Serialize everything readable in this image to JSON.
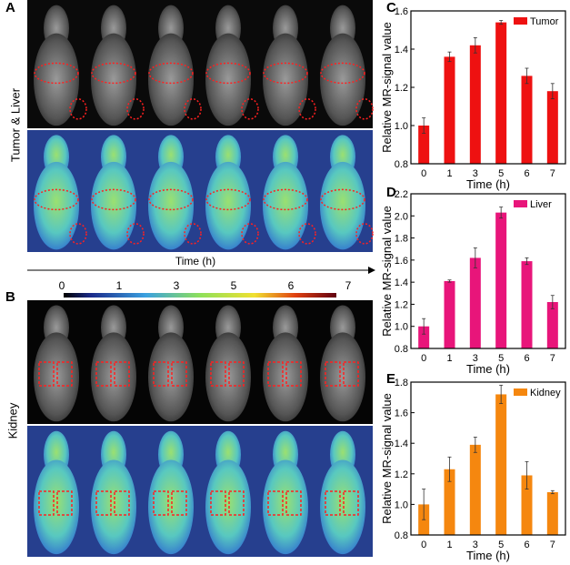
{
  "panels": {
    "A": "A",
    "B": "B",
    "C": "C",
    "D": "D",
    "E": "E"
  },
  "row_labels": {
    "tumor_liver": "Tumor & Liver",
    "kidney": "Kidney"
  },
  "time_axis": {
    "label": "Time (h)",
    "ticks": [
      "0",
      "1",
      "3",
      "5",
      "6",
      "7"
    ]
  },
  "chart_data": [
    {
      "type": "bar",
      "panel": "C",
      "categories": [
        "0",
        "1",
        "3",
        "5",
        "6",
        "7"
      ],
      "series": [
        {
          "name": "Tumor",
          "values": [
            1.0,
            1.36,
            1.42,
            1.54,
            1.26,
            1.18
          ],
          "errors": [
            0.04,
            0.025,
            0.04,
            0.01,
            0.04,
            0.04
          ]
        }
      ],
      "xlabel": "Time (h)",
      "ylabel": "Relative MR-signal value",
      "ylim": [
        0.8,
        1.6
      ],
      "yticks": [
        "0.8",
        "1.0",
        "1.2",
        "1.4",
        "1.6"
      ],
      "color": "#ee1111",
      "legend": "top-right"
    },
    {
      "type": "bar",
      "panel": "D",
      "categories": [
        "0",
        "1",
        "3",
        "5",
        "6",
        "7"
      ],
      "series": [
        {
          "name": "Liver",
          "values": [
            1.0,
            1.41,
            1.62,
            2.03,
            1.59,
            1.22
          ],
          "errors": [
            0.07,
            0.01,
            0.09,
            0.05,
            0.03,
            0.06
          ]
        }
      ],
      "xlabel": "Time (h)",
      "ylabel": "Relative MR-signal value",
      "ylim": [
        0.8,
        2.2
      ],
      "yticks": [
        "0.8",
        "1.0",
        "1.2",
        "1.4",
        "1.6",
        "1.8",
        "2.0",
        "2.2"
      ],
      "color": "#e8157a",
      "legend": "top-right"
    },
    {
      "type": "bar",
      "panel": "E",
      "categories": [
        "0",
        "1",
        "3",
        "5",
        "6",
        "7"
      ],
      "series": [
        {
          "name": "Kidney",
          "values": [
            1.0,
            1.23,
            1.39,
            1.72,
            1.19,
            1.08
          ],
          "errors": [
            0.1,
            0.08,
            0.05,
            0.06,
            0.09,
            0.01
          ]
        }
      ],
      "xlabel": "Time (h)",
      "ylabel": "Relative MR-signal value",
      "ylim": [
        0.8,
        1.8
      ],
      "yticks": [
        "0.8",
        "1.0",
        "1.2",
        "1.4",
        "1.6",
        "1.8"
      ],
      "color": "#f5870f",
      "legend": "top-right"
    }
  ]
}
